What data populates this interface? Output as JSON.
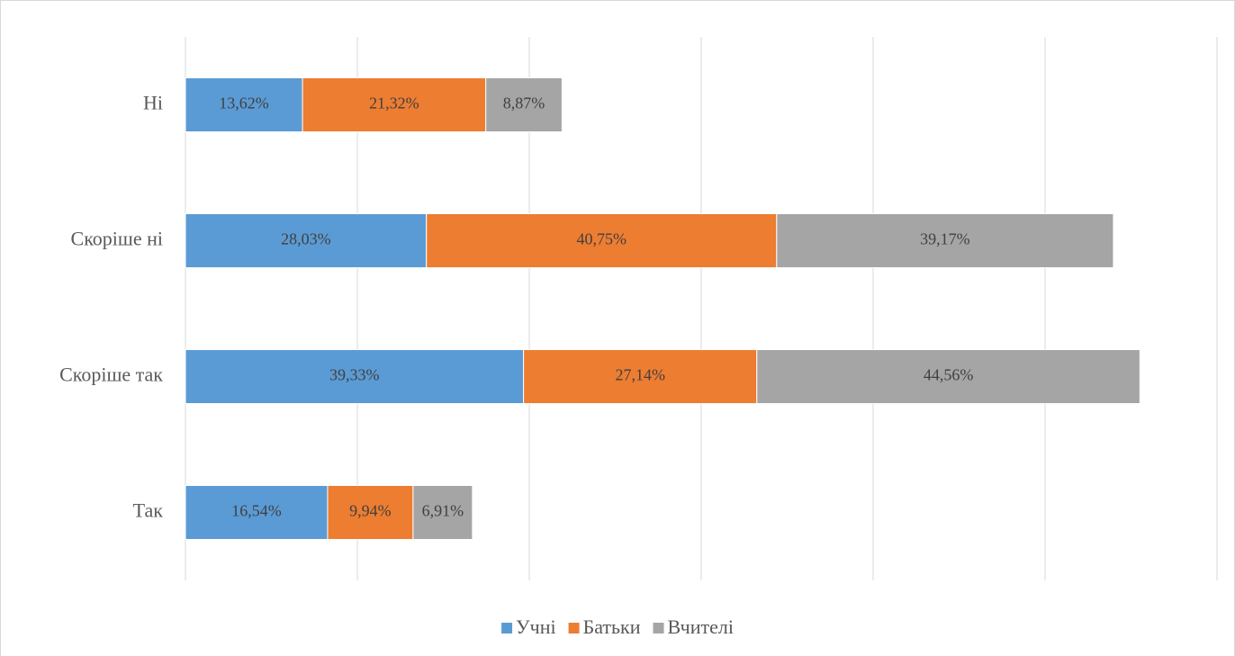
{
  "chart_data": {
    "type": "stacked-bar-horizontal",
    "categories": [
      "Так",
      "Скоріше так",
      "Скоріше ні",
      "Ні"
    ],
    "series": [
      {
        "name": "Учні",
        "color": "#5b9bd5",
        "values": [
          16.54,
          39.33,
          28.03,
          13.62
        ],
        "value_labels": [
          "16,54%",
          "39,33%",
          "28,03%",
          "13,62%"
        ]
      },
      {
        "name": "Батьки",
        "color": "#ed7d31",
        "values": [
          9.94,
          27.14,
          40.75,
          21.32
        ],
        "value_labels": [
          "9,94%",
          "27,14%",
          "40,75%",
          "21,32%"
        ]
      },
      {
        "name": "Вчителі",
        "color": "#a5a5a5",
        "values": [
          6.91,
          44.56,
          39.17,
          8.87
        ],
        "value_labels": [
          "6,91%",
          "44,56%",
          "39,17%",
          "8,87%"
        ]
      }
    ],
    "xlim": [
      0,
      120
    ],
    "xticks": [
      0,
      20,
      40,
      60,
      80,
      100,
      120
    ],
    "grid": true,
    "legend": "bottom"
  }
}
